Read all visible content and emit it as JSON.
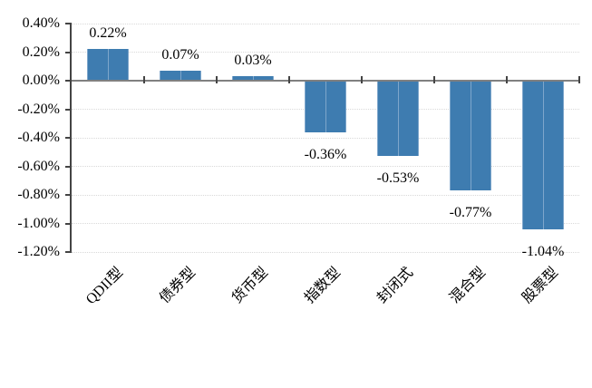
{
  "page": {
    "background": "#FFFFFF",
    "title": ""
  },
  "chart_data": {
    "type": "bar",
    "title": "",
    "xlabel": "",
    "ylabel": "",
    "legend": "none",
    "grid": "horizontal-dotted",
    "categories": [
      "QDII型",
      "债券型",
      "货币型",
      "指数型",
      "封闭式",
      "混合型",
      "股票型"
    ],
    "series": [
      {
        "name": "",
        "values": [
          0.22,
          0.07,
          0.03,
          -0.36,
          -0.53,
          -0.77,
          -1.04
        ],
        "data_labels": [
          "0.22%",
          "0.07%",
          "0.03%",
          "-0.36%",
          "-0.53%",
          "-0.77%",
          "-1.04%"
        ]
      }
    ],
    "unit": "%",
    "ylim": [
      -1.2,
      0.4
    ],
    "y_tick_step": 0.2,
    "y_tick_values": [
      0.4,
      0.2,
      0.0,
      -0.2,
      -0.4,
      -0.6,
      -0.8,
      -1.0,
      -1.2
    ],
    "y_tick_labels": [
      "0.40%",
      "0.20%",
      "0.00%",
      "-0.20%",
      "-0.40%",
      "-0.60%",
      "-0.80%",
      "-1.00%",
      "-1.20%"
    ],
    "colors": {
      "bar": "#3E7CB0",
      "bar_edge": "#7EA6CB",
      "gridline": "#D9D9D9",
      "zero_line": "#808080",
      "axis": "#444444",
      "text": "#000000"
    }
  }
}
